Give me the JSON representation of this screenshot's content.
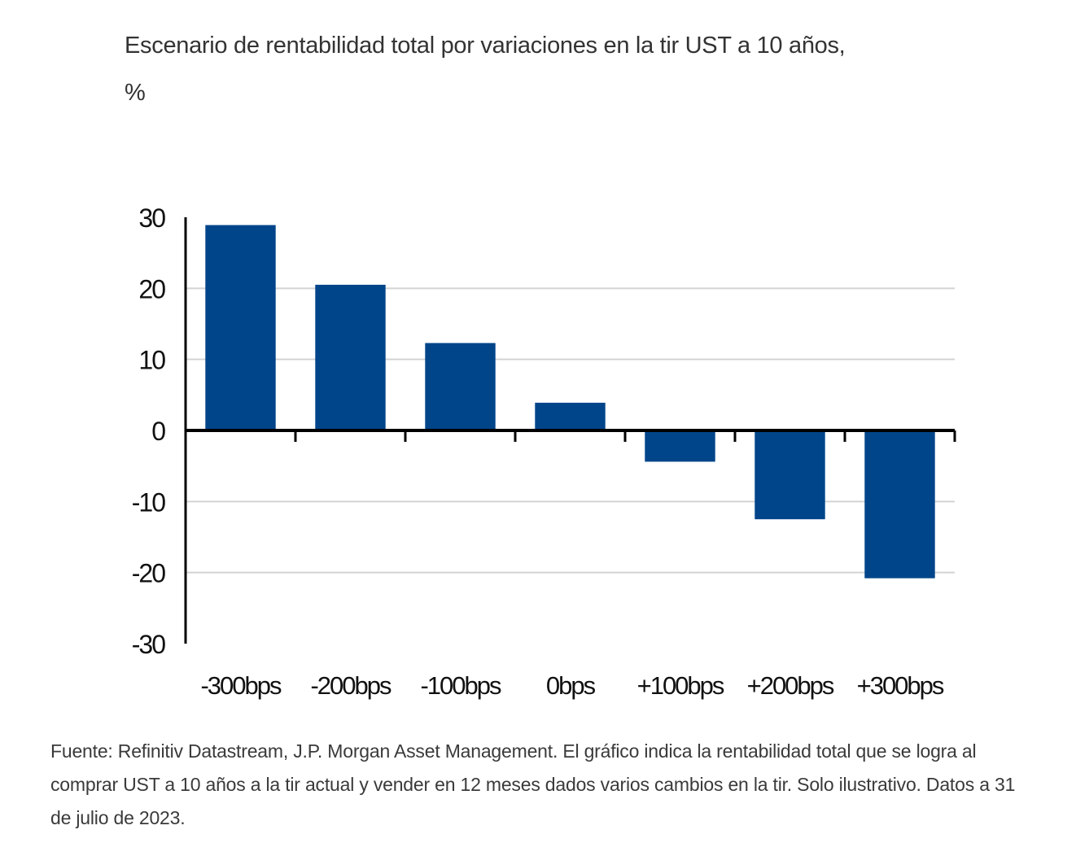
{
  "chart_data": {
    "type": "bar",
    "title": "Escenario de rentabilidad total por variaciones en la tir UST a 10 años,",
    "subtitle": "%",
    "xlabel": "",
    "ylabel": "%",
    "categories": [
      "-300bps",
      "-200bps",
      "-100bps",
      "0bps",
      "+100bps",
      "+200bps",
      "+300bps"
    ],
    "values": [
      28.9,
      20.5,
      12.3,
      3.9,
      -4.4,
      -12.5,
      -20.8
    ],
    "ylim": [
      -30,
      30
    ],
    "yticks": [
      30,
      20,
      10,
      0,
      -10,
      -20,
      -30
    ],
    "ytick_labels": [
      "30",
      "20",
      "10",
      "0",
      "-10",
      "-20",
      "-30"
    ],
    "grid": true,
    "legend": "none",
    "bar_color": "#00458a",
    "gridline_color": "#d3d3d3",
    "axis_color": "#000000"
  },
  "footnote": "Fuente: Refinitiv Datastream, J.P. Morgan Asset Management. El gráfico indica la rentabilidad total que se logra al comprar UST a 10 años a la tir actual y vender en 12 meses dados varios cambios en la tir. Solo ilustrativo. Datos a 31 de julio de 2023."
}
